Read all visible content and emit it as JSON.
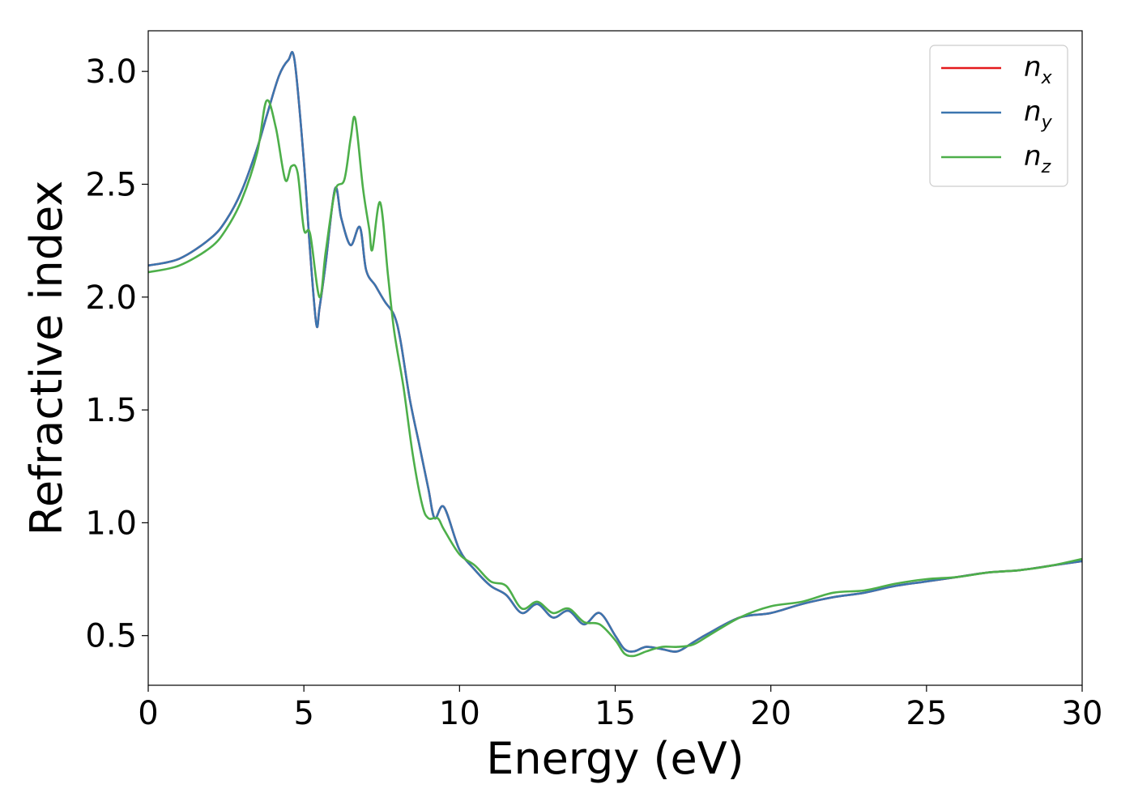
{
  "chart_data": {
    "type": "line",
    "xlabel": "Energy (eV)",
    "ylabel": "Refractive index",
    "xlim": [
      0,
      30
    ],
    "ylim": [
      0.28,
      3.18
    ],
    "xticks": [
      0,
      5,
      10,
      15,
      20,
      25,
      30
    ],
    "xtick_labels": [
      "0",
      "5",
      "10",
      "15",
      "20",
      "25",
      "30"
    ],
    "yticks": [
      0.5,
      1.0,
      1.5,
      2.0,
      2.5,
      3.0
    ],
    "ytick_labels": [
      "0.5",
      "1.0",
      "1.5",
      "2.0",
      "2.5",
      "3.0"
    ],
    "grid": false,
    "legend": {
      "position": "top-right"
    },
    "series": [
      {
        "name": "n",
        "sub": "x",
        "color": "#e41a1c",
        "x": [
          0,
          1,
          2,
          2.5,
          3,
          3.5,
          3.8,
          4.2,
          4.5,
          4.7,
          5.0,
          5.2,
          5.4,
          5.5,
          5.7,
          6.0,
          6.2,
          6.5,
          6.8,
          7.0,
          7.3,
          7.6,
          7.9,
          8.1,
          8.4,
          8.7,
          9.0,
          9.2,
          9.5,
          10.0,
          10.5,
          11.0,
          11.5,
          12.0,
          12.5,
          13.0,
          13.5,
          14.0,
          14.5,
          15.0,
          15.3,
          15.6,
          16.0,
          16.5,
          17.0,
          17.5,
          18.0,
          19.0,
          20.0,
          21.0,
          22.0,
          23.0,
          24.0,
          25.0,
          26.0,
          27.0,
          28.0,
          29.0,
          30.0
        ],
        "y": [
          2.14,
          2.17,
          2.26,
          2.34,
          2.47,
          2.66,
          2.8,
          2.98,
          3.05,
          3.05,
          2.6,
          2.2,
          1.88,
          1.95,
          2.15,
          2.48,
          2.35,
          2.23,
          2.31,
          2.12,
          2.05,
          1.98,
          1.92,
          1.81,
          1.55,
          1.35,
          1.15,
          1.02,
          1.07,
          0.88,
          0.79,
          0.72,
          0.68,
          0.6,
          0.64,
          0.58,
          0.61,
          0.55,
          0.6,
          0.5,
          0.44,
          0.43,
          0.45,
          0.44,
          0.43,
          0.47,
          0.51,
          0.58,
          0.6,
          0.64,
          0.67,
          0.69,
          0.72,
          0.74,
          0.76,
          0.78,
          0.79,
          0.81,
          0.83
        ]
      },
      {
        "name": "n",
        "sub": "y",
        "color": "#3b75af",
        "x": [
          0,
          1,
          2,
          2.5,
          3,
          3.5,
          3.8,
          4.2,
          4.5,
          4.7,
          5.0,
          5.2,
          5.4,
          5.5,
          5.7,
          6.0,
          6.2,
          6.5,
          6.8,
          7.0,
          7.3,
          7.6,
          7.9,
          8.1,
          8.4,
          8.7,
          9.0,
          9.2,
          9.5,
          10.0,
          10.5,
          11.0,
          11.5,
          12.0,
          12.5,
          13.0,
          13.5,
          14.0,
          14.5,
          15.0,
          15.3,
          15.6,
          16.0,
          16.5,
          17.0,
          17.5,
          18.0,
          19.0,
          20.0,
          21.0,
          22.0,
          23.0,
          24.0,
          25.0,
          26.0,
          27.0,
          28.0,
          29.0,
          30.0
        ],
        "y": [
          2.14,
          2.17,
          2.26,
          2.34,
          2.47,
          2.66,
          2.8,
          2.98,
          3.05,
          3.05,
          2.6,
          2.2,
          1.88,
          1.95,
          2.15,
          2.48,
          2.35,
          2.23,
          2.31,
          2.12,
          2.05,
          1.98,
          1.92,
          1.81,
          1.55,
          1.35,
          1.15,
          1.02,
          1.07,
          0.88,
          0.79,
          0.72,
          0.68,
          0.6,
          0.64,
          0.58,
          0.61,
          0.55,
          0.6,
          0.5,
          0.44,
          0.43,
          0.45,
          0.44,
          0.43,
          0.47,
          0.51,
          0.58,
          0.6,
          0.64,
          0.67,
          0.69,
          0.72,
          0.74,
          0.76,
          0.78,
          0.79,
          0.81,
          0.83
        ]
      },
      {
        "name": "n",
        "sub": "z",
        "color": "#4daf4a",
        "x": [
          0,
          1,
          2,
          2.5,
          3,
          3.5,
          3.8,
          4.1,
          4.4,
          4.6,
          4.8,
          5.0,
          5.2,
          5.5,
          5.7,
          6.0,
          6.3,
          6.5,
          6.65,
          6.9,
          7.1,
          7.2,
          7.45,
          7.7,
          7.9,
          8.2,
          8.5,
          8.8,
          9.0,
          9.3,
          9.5,
          10.0,
          10.5,
          11.0,
          11.5,
          12.0,
          12.5,
          13.0,
          13.5,
          14.0,
          14.5,
          15.0,
          15.3,
          15.6,
          16.0,
          16.5,
          17.0,
          17.5,
          18.0,
          19.0,
          20.0,
          21.0,
          22.0,
          23.0,
          24.0,
          25.0,
          26.0,
          27.0,
          28.0,
          29.0,
          30.0
        ],
        "y": [
          2.11,
          2.14,
          2.22,
          2.3,
          2.43,
          2.64,
          2.87,
          2.75,
          2.52,
          2.58,
          2.55,
          2.3,
          2.28,
          2.0,
          2.2,
          2.47,
          2.52,
          2.7,
          2.79,
          2.48,
          2.3,
          2.21,
          2.42,
          2.1,
          1.85,
          1.6,
          1.3,
          1.08,
          1.02,
          1.02,
          0.97,
          0.86,
          0.81,
          0.74,
          0.72,
          0.62,
          0.65,
          0.6,
          0.62,
          0.56,
          0.55,
          0.48,
          0.42,
          0.41,
          0.43,
          0.45,
          0.45,
          0.46,
          0.5,
          0.58,
          0.63,
          0.65,
          0.69,
          0.7,
          0.73,
          0.75,
          0.76,
          0.78,
          0.79,
          0.81,
          0.84
        ]
      }
    ]
  }
}
